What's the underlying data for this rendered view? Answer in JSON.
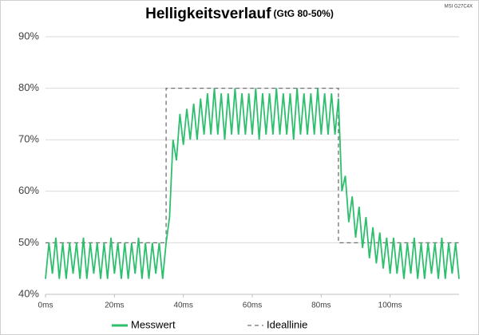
{
  "chart_data": {
    "type": "line",
    "title": "Helligkeitsverlauf",
    "subtitle": "(GtG 80-50%)",
    "watermark": "MSI G27C4X",
    "xlim": [
      0,
      120
    ],
    "xticks": [
      {
        "value": 0,
        "label": "0ms"
      },
      {
        "value": 20,
        "label": "20ms"
      },
      {
        "value": 40,
        "label": "40ms"
      },
      {
        "value": 60,
        "label": "60ms"
      },
      {
        "value": 80,
        "label": "80ms"
      },
      {
        "value": 100,
        "label": "100ms"
      }
    ],
    "ylim": [
      40,
      90
    ],
    "yticks": [
      {
        "value": 40,
        "label": "40%"
      },
      {
        "value": 50,
        "label": "50%"
      },
      {
        "value": 60,
        "label": "60%"
      },
      {
        "value": 70,
        "label": "70%"
      },
      {
        "value": 80,
        "label": "80%"
      },
      {
        "value": 90,
        "label": "90%"
      }
    ],
    "grid": true,
    "series": [
      {
        "name": "Messwert",
        "color": "#2ebf6e",
        "dashed": false,
        "x": [
          0,
          1,
          2,
          3,
          4,
          5,
          6,
          7,
          8,
          9,
          10,
          11,
          12,
          13,
          14,
          15,
          16,
          17,
          18,
          19,
          20,
          21,
          22,
          23,
          24,
          25,
          26,
          27,
          28,
          29,
          30,
          31,
          32,
          33,
          34,
          35,
          36,
          37,
          38,
          39,
          40,
          41,
          42,
          43,
          44,
          45,
          46,
          47,
          48,
          49,
          50,
          51,
          52,
          53,
          54,
          55,
          56,
          57,
          58,
          59,
          60,
          61,
          62,
          63,
          64,
          65,
          66,
          67,
          68,
          69,
          70,
          71,
          72,
          73,
          74,
          75,
          76,
          77,
          78,
          79,
          80,
          81,
          82,
          83,
          84,
          85,
          86,
          87,
          88,
          89,
          90,
          91,
          92,
          93,
          94,
          95,
          96,
          97,
          98,
          99,
          100,
          101,
          102,
          103,
          104,
          105,
          106,
          107,
          108,
          109,
          110,
          111,
          112,
          113,
          114,
          115,
          116,
          117,
          118,
          119,
          120
        ],
        "values": [
          43,
          50,
          44,
          51,
          43,
          50,
          43,
          50,
          44,
          50,
          43,
          51,
          43,
          50,
          44,
          50,
          43,
          50,
          43,
          51,
          44,
          50,
          43,
          50,
          43,
          50,
          44,
          51,
          43,
          50,
          43,
          50,
          44,
          50,
          43,
          50,
          55,
          70,
          66,
          75,
          69,
          76,
          70,
          77,
          70,
          78,
          71,
          79,
          71,
          80,
          71,
          79,
          70,
          79,
          71,
          80,
          71,
          79,
          71,
          79,
          71,
          80,
          70,
          79,
          71,
          79,
          71,
          80,
          71,
          79,
          71,
          79,
          70,
          80,
          71,
          79,
          71,
          79,
          71,
          80,
          71,
          79,
          71,
          79,
          71,
          78,
          60,
          63,
          54,
          59,
          51,
          57,
          49,
          55,
          47,
          53,
          46,
          52,
          45,
          51,
          44,
          51,
          44,
          50,
          43,
          50,
          44,
          51,
          43,
          50,
          43,
          50,
          44,
          50,
          43,
          51,
          43,
          50,
          44,
          50,
          43
        ]
      },
      {
        "name": "Ideallinie",
        "color": "#707070",
        "dashed": true,
        "x": [
          0,
          35,
          35,
          85,
          85,
          120
        ],
        "values": [
          50,
          50,
          80,
          80,
          50,
          50
        ]
      }
    ]
  }
}
